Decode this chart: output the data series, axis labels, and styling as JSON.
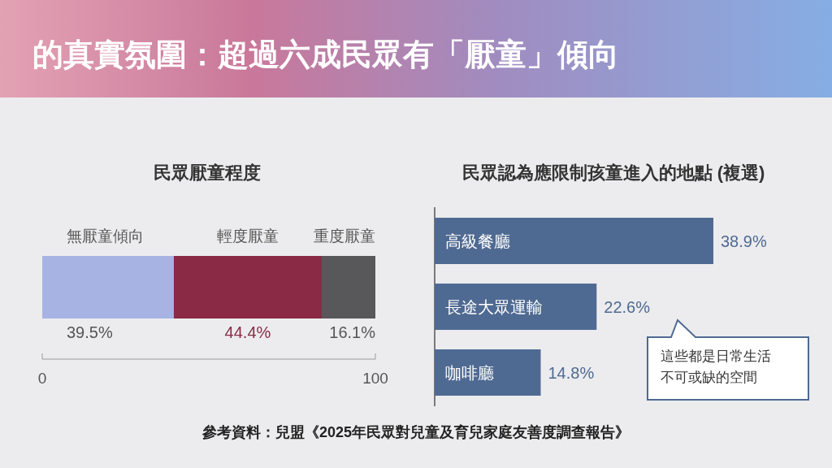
{
  "chart_data": [
    {
      "type": "other",
      "title": "的真實氛圍：超過六成民眾有「厭童」傾向",
      "annotations": [
        "參考資料：兒盟《2025年民眾對兒童及育兒家庭友善度調查報告》"
      ]
    },
    {
      "type": "bar",
      "title": "民眾厭童程度",
      "orientation": "horizontal",
      "stacked": true,
      "categories": [
        null
      ],
      "xlim": [
        0,
        100
      ],
      "xticks": [
        0,
        100
      ],
      "series": [
        {
          "name": "無厭童傾向",
          "color": "#a7b3e3",
          "values": [
            39.5
          ],
          "value_labels": [
            "39.5%"
          ]
        },
        {
          "name": "輕度厭童",
          "color": "#8a2a45",
          "values": [
            44.4
          ],
          "value_labels": [
            "44.4%"
          ]
        },
        {
          "name": "重度厭童",
          "color": "#58585a",
          "values": [
            16.1
          ],
          "value_labels": [
            "16.1%"
          ]
        }
      ]
    },
    {
      "type": "bar",
      "title": "民眾認為應限制孩童進入的地點 (複選)",
      "orientation": "horizontal",
      "categories": [
        "高級餐廳",
        "長途大眾運輸",
        "咖啡廳"
      ],
      "values": [
        38.9,
        22.6,
        14.8
      ],
      "color": "#4f6a92",
      "value_labels": [
        "38.9%",
        "22.6%",
        "14.8%"
      ],
      "annotations": [
        "這些都是日常生活",
        "不可或缺的空間"
      ]
    }
  ]
}
